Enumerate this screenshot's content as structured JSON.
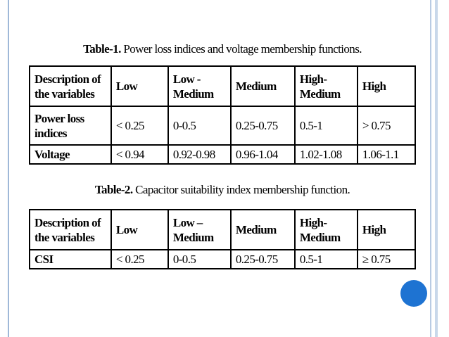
{
  "tables": [
    {
      "label": "Table-1.",
      "title": "Power loss indices and voltage membership functions.",
      "header": [
        "Description of\nthe variables",
        "Low",
        "Low -\nMedium",
        "Medium",
        "High-\nMedium",
        "High"
      ],
      "rows": [
        [
          "Power loss\nindices",
          "< 0.25",
          "0-0.5",
          "0.25-0.75",
          "0.5-1",
          "> 0.75"
        ],
        [
          "Voltage",
          "< 0.94",
          "0.92-0.98",
          "0.96-1.04",
          "1.02-1.08",
          "1.06-1.1"
        ]
      ]
    },
    {
      "label": "Table-2.",
      "title": "Capacitor suitability index membership function.",
      "header": [
        "Description of\nthe variables",
        "Low",
        "Low –\nMedium",
        "Medium",
        "High-\nMedium",
        "High"
      ],
      "rows": [
        [
          "CSI",
          "< 0.25",
          "0-0.5",
          "0.25-0.75",
          "0.5-1",
          "≥ 0.75"
        ]
      ]
    }
  ]
}
